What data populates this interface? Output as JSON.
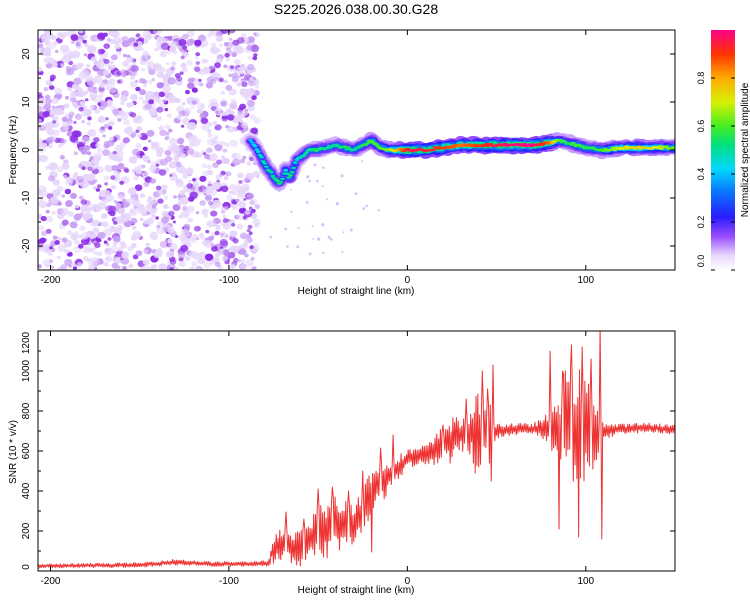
{
  "figure_title": "S225.2026.038.00.30.G28",
  "chart_data": [
    {
      "type": "heatmap",
      "title": "S225.2026.038.00.30.G28",
      "xlabel": "Height of straight line (km)",
      "ylabel": "Frequency (Hz)",
      "xlim": [
        -207,
        150
      ],
      "ylim": [
        -25,
        25
      ],
      "x_ticks": [
        -200,
        -100,
        0,
        100
      ],
      "y_ticks": [
        -20,
        -10,
        0,
        10,
        20
      ],
      "colorbar": {
        "label": "Normalized spectral amplitude",
        "range": [
          0,
          1
        ],
        "ticks": [
          "0.0",
          "0.2",
          "0.4",
          "0.6",
          "0.8"
        ]
      },
      "noise_region_x": [
        -207,
        -84
      ],
      "ridge": {
        "x": [
          -88,
          -84,
          -80,
          -76,
          -72,
          -70,
          -68,
          -66,
          -62,
          -58,
          -55,
          -50,
          -45,
          -40,
          -35,
          -30,
          -25,
          -20,
          -15,
          -10,
          -5,
          0,
          10,
          20,
          30,
          40,
          50,
          60,
          70,
          80,
          85,
          90,
          95,
          100,
          110,
          120,
          130,
          140,
          150
        ],
        "freq": [
          2,
          0,
          -3,
          -5,
          -7,
          -6,
          -4,
          -6,
          -2,
          -1,
          0,
          0,
          0.5,
          1,
          0.5,
          0,
          1,
          2,
          0.5,
          0,
          0,
          0,
          0,
          0.5,
          1,
          1,
          1,
          1,
          1,
          1.5,
          2,
          1.5,
          1,
          0.5,
          0,
          0.5,
          0.5,
          0.5,
          0.5
        ],
        "amp": [
          0.4,
          0.45,
          0.5,
          0.5,
          0.55,
          0.5,
          0.45,
          0.55,
          0.45,
          0.5,
          0.5,
          0.55,
          0.5,
          0.5,
          0.55,
          0.5,
          0.55,
          0.6,
          0.6,
          0.65,
          0.8,
          0.95,
          0.95,
          0.9,
          0.85,
          0.9,
          0.95,
          1.0,
          1.0,
          0.85,
          0.6,
          0.55,
          0.6,
          0.55,
          0.6,
          0.7,
          0.75,
          0.7,
          0.6
        ]
      }
    },
    {
      "type": "line",
      "xlabel": "Height of straight line (km)",
      "ylabel": "SNR (10 * v/v)",
      "xlim": [
        -207,
        150
      ],
      "ylim": [
        0,
        1200
      ],
      "x_ticks": [
        -200,
        -100,
        0,
        100
      ],
      "y_ticks": [
        0,
        200,
        400,
        600,
        800,
        1000,
        1200
      ],
      "series": [
        {
          "name": "SNR",
          "color": "#ee3333",
          "x": [
            -207,
            -150,
            -130,
            -110,
            -90,
            -78,
            -75,
            -72,
            -68,
            -65,
            -60,
            -55,
            -50,
            -45,
            -40,
            -35,
            -30,
            -25,
            -20,
            -15,
            -10,
            -5,
            0,
            5,
            10,
            15,
            20,
            25,
            30,
            35,
            40,
            45,
            50,
            60,
            70,
            80,
            85,
            90,
            95,
            100,
            105,
            110,
            120,
            130,
            140,
            150
          ],
          "mean": [
            25,
            30,
            45,
            35,
            35,
            40,
            90,
            130,
            140,
            100,
            120,
            150,
            200,
            210,
            240,
            230,
            240,
            300,
            400,
            440,
            480,
            520,
            560,
            570,
            580,
            600,
            630,
            660,
            680,
            690,
            700,
            690,
            700,
            710,
            710,
            715,
            700,
            720,
            730,
            710,
            700,
            700,
            710,
            715,
            715,
            705
          ],
          "amp": [
            10,
            12,
            15,
            12,
            12,
            15,
            60,
            90,
            80,
            70,
            100,
            120,
            150,
            150,
            140,
            130,
            120,
            130,
            120,
            110,
            80,
            60,
            50,
            50,
            50,
            70,
            100,
            120,
            80,
            130,
            200,
            180,
            40,
            30,
            25,
            80,
            250,
            320,
            300,
            260,
            200,
            40,
            25,
            25,
            25,
            25
          ]
        }
      ],
      "spikes": [
        {
          "x": -76,
          "y": 75
        },
        {
          "x": -68,
          "y": 295
        },
        {
          "x": -63,
          "y": 55
        },
        {
          "x": -58,
          "y": 260
        },
        {
          "x": -50,
          "y": 410
        },
        {
          "x": -42,
          "y": 420
        },
        {
          "x": -38,
          "y": 105
        },
        {
          "x": -33,
          "y": 400
        },
        {
          "x": -25,
          "y": 500
        },
        {
          "x": -20,
          "y": 95
        },
        {
          "x": -15,
          "y": 615
        },
        {
          "x": -8,
          "y": 680
        },
        {
          "x": 20,
          "y": 730
        },
        {
          "x": 33,
          "y": 860
        },
        {
          "x": 38,
          "y": 490
        },
        {
          "x": 42,
          "y": 1000
        },
        {
          "x": 45,
          "y": 910
        },
        {
          "x": 48,
          "y": 1030
        },
        {
          "x": 47,
          "y": 450
        },
        {
          "x": 80,
          "y": 1100
        },
        {
          "x": 85,
          "y": 210
        },
        {
          "x": 87,
          "y": 1000
        },
        {
          "x": 92,
          "y": 1130
        },
        {
          "x": 96,
          "y": 170
        },
        {
          "x": 98,
          "y": 1120
        },
        {
          "x": 103,
          "y": 1060
        },
        {
          "x": 108,
          "y": 1230
        },
        {
          "x": 109,
          "y": 160
        }
      ]
    }
  ]
}
